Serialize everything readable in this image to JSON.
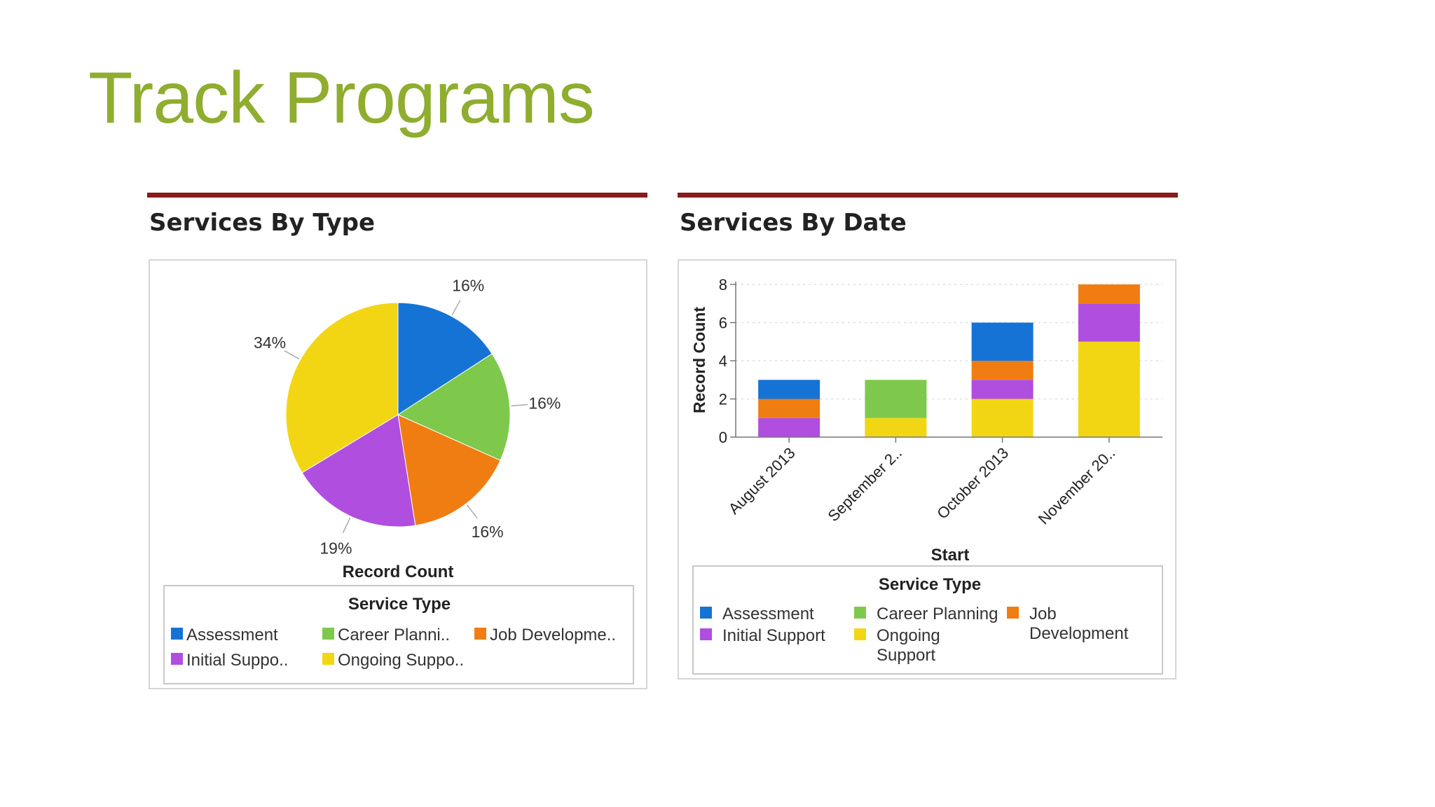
{
  "slide": {
    "title": "Track Programs"
  },
  "panels": {
    "left": {
      "title": "Services By Type"
    },
    "right": {
      "title": "Services By Date"
    }
  },
  "colors": {
    "rule": "#8b1a1a",
    "title": "#8fad2f",
    "Assessment": "#1673d6",
    "Career Planning": "#7ec94c",
    "Job Development": "#f07d12",
    "Initial Support": "#b04ee0",
    "Ongoing Support": "#f2d614"
  },
  "chart_data": [
    {
      "type": "pie",
      "title": "Services By Type",
      "xlabel": "Record Count",
      "legend_title": "Service Type",
      "legend_position": "bottom",
      "slices": [
        {
          "name": "Assessment",
          "label": "Assessment",
          "value": 16,
          "display": "16%"
        },
        {
          "name": "Career Planning",
          "label": "Career Planni..",
          "value": 16,
          "display": "16%"
        },
        {
          "name": "Job Development",
          "label": "Job Developme..",
          "value": 16,
          "display": "16%"
        },
        {
          "name": "Initial Support",
          "label": "Initial Suppo..",
          "value": 19,
          "display": "19%"
        },
        {
          "name": "Ongoing Support",
          "label": "Ongoing Suppo..",
          "value": 34,
          "display": "34%"
        }
      ]
    },
    {
      "type": "bar",
      "stacked": true,
      "title": "Services By Date",
      "xlabel": "Start",
      "ylabel": "Record Count",
      "ylim": [
        0,
        8
      ],
      "yticks": [
        "0",
        "2",
        "4",
        "6",
        "8"
      ],
      "grid": true,
      "legend_title": "Service Type",
      "legend_position": "bottom",
      "categories": [
        "August 2013",
        "September 2..",
        "October 2013",
        "November 20.."
      ],
      "series": [
        {
          "name": "Ongoing Support",
          "legend": [
            "Ongoing",
            "Support"
          ],
          "values": [
            0,
            1,
            2,
            5
          ]
        },
        {
          "name": "Initial Support",
          "legend": [
            "Initial Support"
          ],
          "values": [
            1,
            0,
            1,
            2
          ]
        },
        {
          "name": "Job Development",
          "legend": [
            "Job",
            "Development"
          ],
          "values": [
            1,
            0,
            1,
            1
          ]
        },
        {
          "name": "Career Planning",
          "legend": [
            "Career Planning"
          ],
          "values": [
            0,
            2,
            0,
            0
          ]
        },
        {
          "name": "Assessment",
          "legend": [
            "Assessment"
          ],
          "values": [
            1,
            0,
            2,
            0
          ]
        }
      ]
    }
  ]
}
